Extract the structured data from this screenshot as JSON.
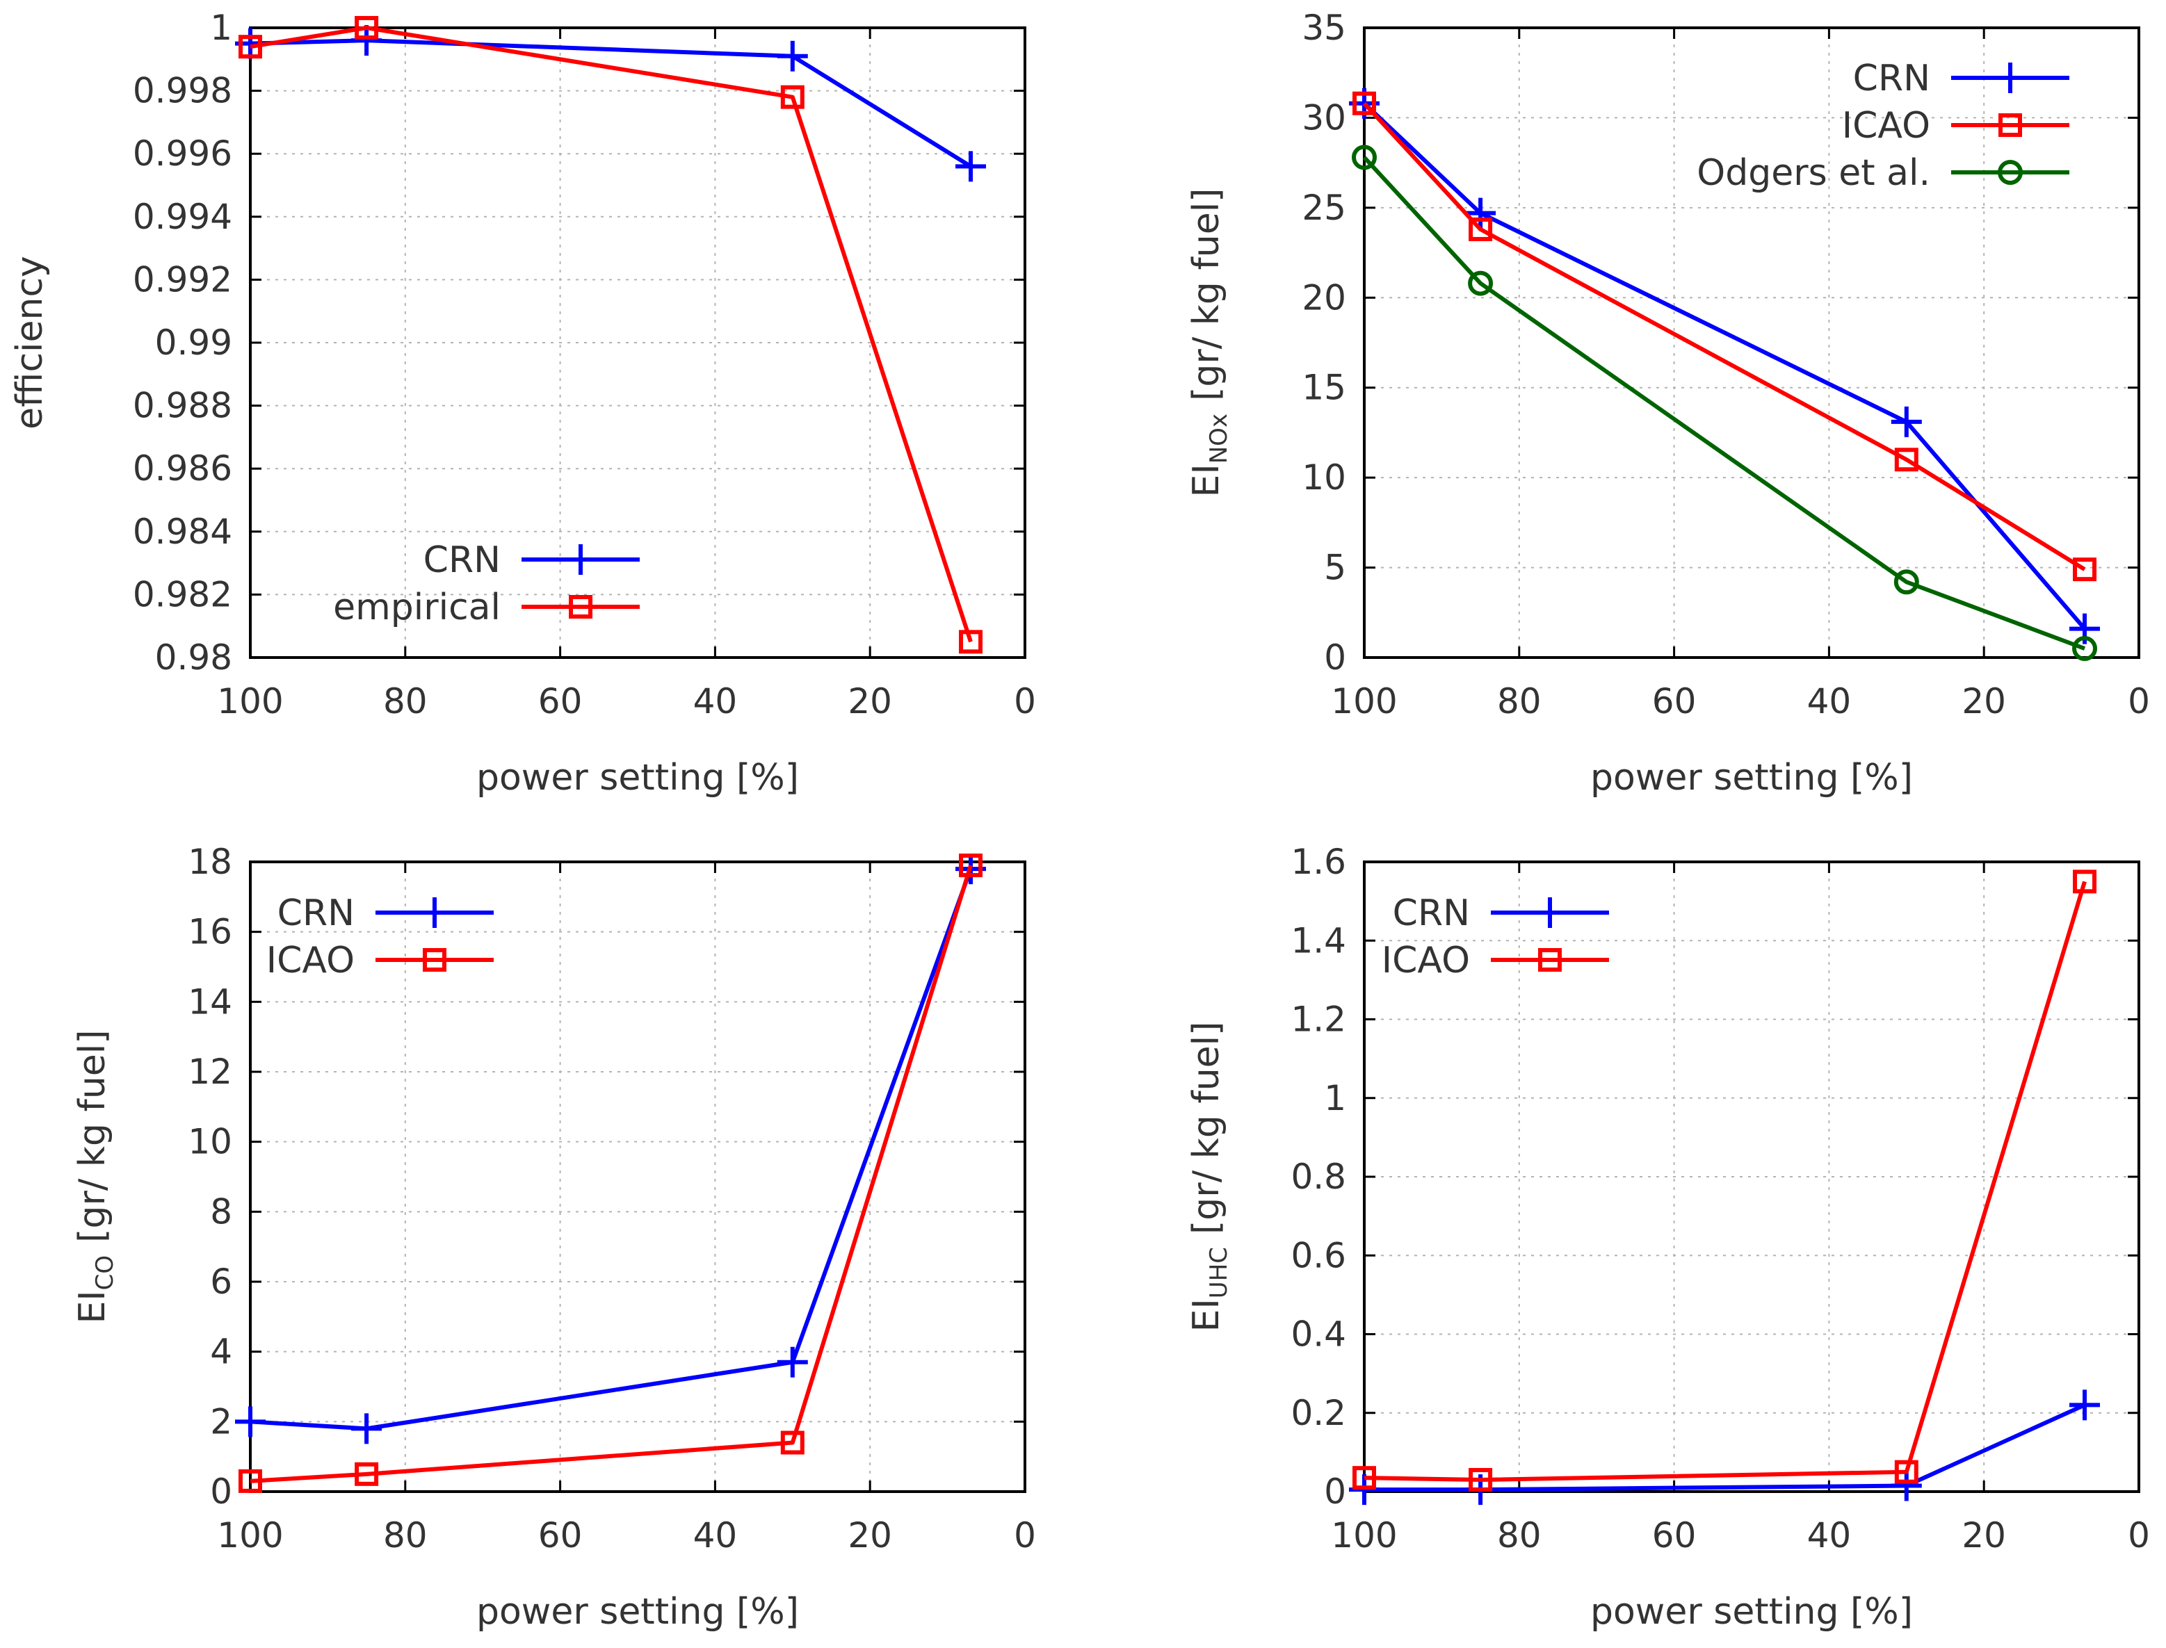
{
  "figure_title": "",
  "colors": {
    "CRN": "#0000ff",
    "empirical": "#ff0000",
    "ICAO": "#ff0000",
    "Odgers et al.": "#006400"
  },
  "chart_data": [
    {
      "id": "efficiency",
      "type": "line",
      "title": "",
      "xlabel": "power setting [%]",
      "ylabel": "efficiency",
      "xlim": [
        100,
        0
      ],
      "ylim": [
        0.98,
        1.0
      ],
      "xticks": [
        "100",
        "80",
        "60",
        "40",
        "20",
        "0"
      ],
      "yticks": [
        "0.98",
        "0.982",
        "0.984",
        "0.986",
        "0.988",
        "0.99",
        "0.992",
        "0.994",
        "0.996",
        "0.998",
        "1"
      ],
      "grid": true,
      "legend_position": "bottom-left",
      "series": [
        {
          "name": "CRN",
          "marker": "plus",
          "x": [
            100,
            85,
            30,
            7
          ],
          "values": [
            0.9995,
            0.9996,
            0.9991,
            0.9956
          ]
        },
        {
          "name": "empirical",
          "marker": "square",
          "x": [
            100,
            85,
            30,
            7
          ],
          "values": [
            0.9994,
            1.0,
            0.9978,
            0.9805
          ]
        }
      ]
    },
    {
      "id": "einox",
      "type": "line",
      "title": "",
      "xlabel": "power setting [%]",
      "ylabel_main": "EI",
      "ylabel_sub": "NOx",
      "ylabel_unit": "[gr/ kg fuel]",
      "xlim": [
        100,
        0
      ],
      "ylim": [
        0,
        35
      ],
      "xticks": [
        "100",
        "80",
        "60",
        "40",
        "20",
        "0"
      ],
      "yticks": [
        "0",
        "5",
        "10",
        "15",
        "20",
        "25",
        "30",
        "35"
      ],
      "grid": true,
      "legend_position": "top-right",
      "series": [
        {
          "name": "CRN",
          "marker": "plus",
          "x": [
            100,
            85,
            30,
            7
          ],
          "values": [
            30.8,
            24.7,
            13.1,
            1.6
          ]
        },
        {
          "name": "ICAO",
          "marker": "square",
          "x": [
            100,
            85,
            30,
            7
          ],
          "values": [
            30.8,
            23.8,
            11.0,
            4.9
          ]
        },
        {
          "name": "Odgers et al.",
          "marker": "circle",
          "x": [
            100,
            85,
            30,
            7
          ],
          "values": [
            27.8,
            20.8,
            4.2,
            0.5
          ]
        }
      ]
    },
    {
      "id": "eico",
      "type": "line",
      "title": "",
      "xlabel": "power setting [%]",
      "ylabel_main": "EI",
      "ylabel_sub": "CO",
      "ylabel_unit": "[gr/ kg fuel]",
      "xlim": [
        100,
        0
      ],
      "ylim": [
        0,
        18
      ],
      "xticks": [
        "100",
        "80",
        "60",
        "40",
        "20",
        "0"
      ],
      "yticks": [
        "0",
        "2",
        "4",
        "6",
        "8",
        "10",
        "12",
        "14",
        "16",
        "18"
      ],
      "grid": true,
      "legend_position": "top-left",
      "series": [
        {
          "name": "CRN",
          "marker": "plus",
          "x": [
            100,
            85,
            30,
            7
          ],
          "values": [
            2.0,
            1.8,
            3.7,
            17.8
          ]
        },
        {
          "name": "ICAO",
          "marker": "square",
          "x": [
            100,
            85,
            30,
            7
          ],
          "values": [
            0.3,
            0.5,
            1.4,
            17.9
          ]
        }
      ]
    },
    {
      "id": "eiuhc",
      "type": "line",
      "title": "",
      "xlabel": "power setting [%]",
      "ylabel_main": "EI",
      "ylabel_sub": "UHC",
      "ylabel_unit": "[gr/ kg fuel]",
      "xlim": [
        100,
        0
      ],
      "ylim": [
        0,
        1.6
      ],
      "xticks": [
        "100",
        "80",
        "60",
        "40",
        "20",
        "0"
      ],
      "yticks": [
        "0",
        "0.2",
        "0.4",
        "0.6",
        "0.8",
        "1",
        "1.2",
        "1.4",
        "1.6"
      ],
      "grid": true,
      "legend_position": "top-left",
      "series": [
        {
          "name": "CRN",
          "marker": "plus",
          "x": [
            100,
            85,
            30,
            7
          ],
          "values": [
            0.005,
            0.005,
            0.015,
            0.22
          ]
        },
        {
          "name": "ICAO",
          "marker": "square",
          "x": [
            100,
            85,
            30,
            7
          ],
          "values": [
            0.035,
            0.03,
            0.05,
            1.55
          ]
        }
      ]
    }
  ]
}
